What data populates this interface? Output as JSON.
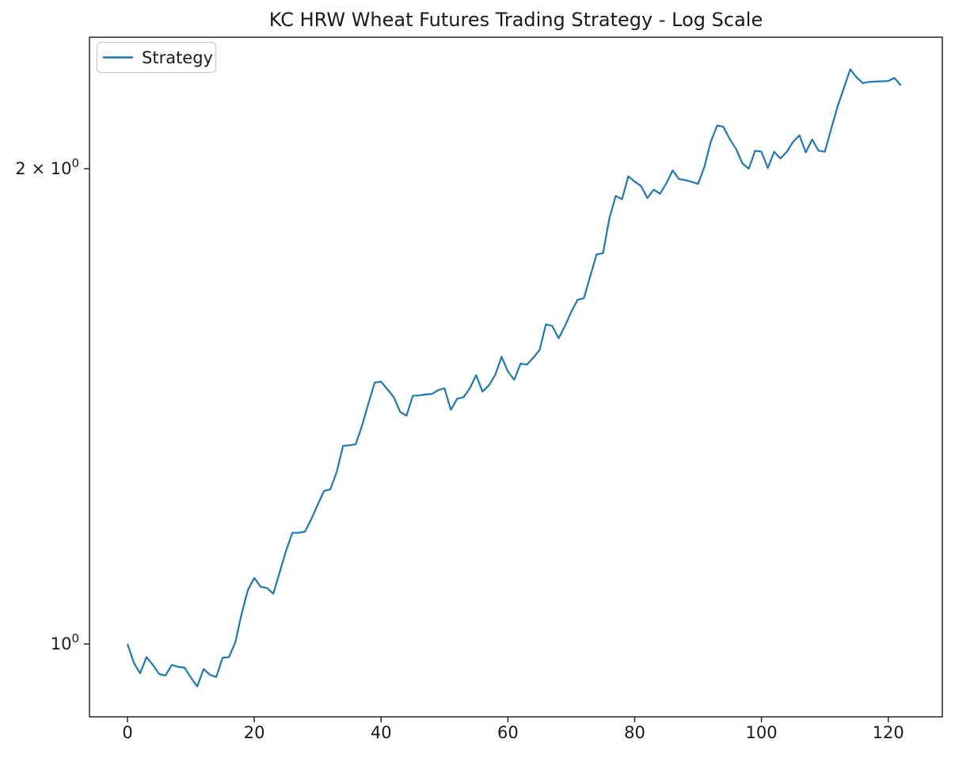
{
  "title": "KC HRW Wheat Futures Trading Strategy - Log Scale",
  "legend": {
    "items": [
      {
        "label": "Strategy",
        "color": "#1f77b4"
      }
    ]
  },
  "colors": {
    "line": "#1f77b4",
    "text": "#1a1a1a",
    "spine": "#262626"
  },
  "chart_data": {
    "type": "line",
    "title": "KC HRW Wheat Futures Trading Strategy - Log Scale",
    "xlabel": "",
    "ylabel": "",
    "yscale": "log",
    "grid": false,
    "legend_position": "upper left",
    "x_start": 0,
    "x_step": 1,
    "n_points": 123,
    "x_ticks": [
      0,
      20,
      40,
      60,
      80,
      100,
      120
    ],
    "y_ticks": [
      {
        "value": 1,
        "prefix": "",
        "base": "10",
        "exp": "0"
      },
      {
        "value": 2,
        "prefix": "2 × ",
        "base": "10",
        "exp": "0"
      }
    ],
    "xlim": [
      -6.0,
      128.5
    ],
    "ylim": [
      0.899,
      2.423
    ],
    "series": [
      {
        "name": "Strategy",
        "values": [
          1.0,
          0.973,
          0.958,
          0.981,
          0.97,
          0.957,
          0.955,
          0.97,
          0.967,
          0.966,
          0.952,
          0.94,
          0.964,
          0.956,
          0.953,
          0.98,
          0.981,
          1.002,
          1.045,
          1.082,
          1.101,
          1.087,
          1.085,
          1.076,
          1.11,
          1.145,
          1.176,
          1.176,
          1.178,
          1.2,
          1.225,
          1.25,
          1.253,
          1.285,
          1.335,
          1.336,
          1.338,
          1.375,
          1.42,
          1.464,
          1.466,
          1.45,
          1.433,
          1.403,
          1.395,
          1.436,
          1.437,
          1.439,
          1.44,
          1.448,
          1.452,
          1.407,
          1.43,
          1.433,
          1.452,
          1.48,
          1.445,
          1.458,
          1.48,
          1.52,
          1.488,
          1.47,
          1.505,
          1.503,
          1.518,
          1.535,
          1.594,
          1.59,
          1.562,
          1.59,
          1.623,
          1.652,
          1.656,
          1.71,
          1.765,
          1.768,
          1.86,
          1.922,
          1.913,
          1.978,
          1.963,
          1.95,
          1.916,
          1.94,
          1.928,
          1.958,
          1.995,
          1.97,
          1.967,
          1.962,
          1.956,
          2.005,
          2.08,
          2.13,
          2.126,
          2.088,
          2.058,
          2.015,
          2.0,
          2.053,
          2.05,
          2.002,
          2.05,
          2.03,
          2.05,
          2.08,
          2.1,
          2.048,
          2.087,
          2.053,
          2.05,
          2.12,
          2.19,
          2.25,
          2.312,
          2.285,
          2.266,
          2.27,
          2.271,
          2.272,
          2.273,
          2.283,
          2.258
        ]
      }
    ]
  }
}
